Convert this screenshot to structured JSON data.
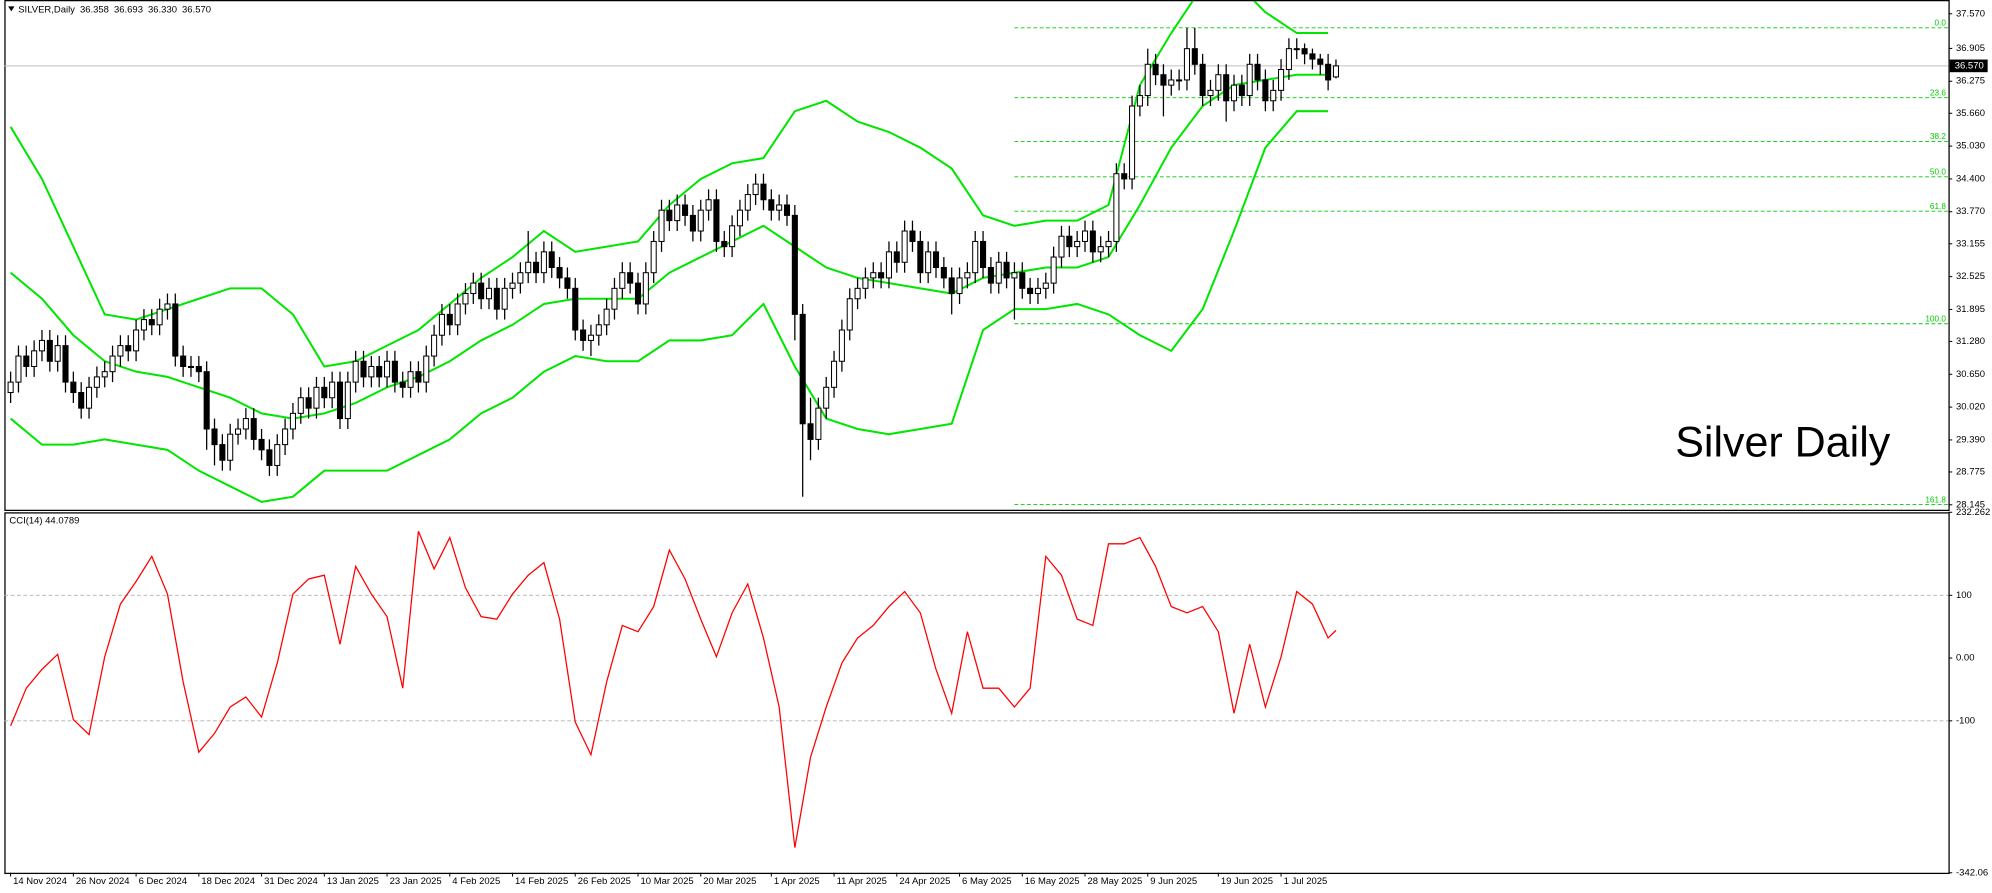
{
  "chart_data": [
    {
      "type": "candlestick",
      "title": "SILVER,Daily",
      "header_values": [
        "36.358",
        "36.693",
        "36.330",
        "36.570"
      ],
      "annotation": "Silver Daily",
      "up_color": "#ffffff",
      "down_color": "#000000",
      "outline_color": "#000000",
      "open": [
        30.3,
        30.5,
        31.0,
        30.8,
        31.1,
        31.3,
        30.9,
        31.2,
        30.5,
        30.3,
        30.0,
        30.4,
        30.6,
        30.7,
        31.0,
        31.2,
        31.1,
        31.5,
        31.7,
        31.6,
        31.9,
        32.0,
        31.0,
        30.8,
        30.8,
        30.7,
        29.6,
        29.3,
        29.0,
        29.5,
        29.6,
        29.8,
        29.4,
        29.2,
        28.9,
        29.3,
        29.6,
        29.9,
        30.2,
        30.0,
        30.4,
        30.2,
        30.5,
        29.8,
        30.5,
        30.9,
        30.6,
        30.8,
        30.6,
        30.9,
        30.5,
        30.4,
        30.7,
        30.5,
        31.0,
        31.4,
        31.8,
        31.6,
        32.0,
        32.2,
        32.4,
        32.1,
        32.3,
        31.9,
        32.3,
        32.4,
        32.6,
        32.8,
        32.6,
        33.0,
        32.7,
        32.5,
        32.3,
        31.5,
        31.3,
        31.4,
        31.6,
        31.9,
        32.3,
        32.6,
        32.4,
        32.0,
        32.6,
        33.2,
        33.8,
        33.6,
        33.9,
        33.7,
        33.4,
        33.8,
        34.0,
        33.2,
        33.1,
        33.5,
        33.8,
        34.1,
        34.3,
        34.0,
        33.8,
        33.9,
        33.7,
        31.8,
        29.7,
        29.4,
        30.0,
        30.4,
        30.9,
        31.5,
        32.1,
        32.3,
        32.5,
        32.6,
        32.5,
        33.0,
        32.8,
        33.4,
        33.2,
        32.6,
        33.0,
        32.7,
        32.5,
        32.2,
        32.5,
        32.6,
        33.2,
        32.7,
        32.4,
        32.8,
        32.5,
        32.6,
        32.3,
        32.2,
        32.3,
        32.4,
        32.9,
        33.3,
        33.1,
        33.2,
        33.4,
        33.0,
        33.1,
        33.2,
        34.5,
        34.4,
        35.8,
        36.0,
        36.6,
        36.4,
        36.2,
        36.3,
        36.3,
        36.9,
        36.6,
        36.0,
        36.1,
        36.4,
        35.9,
        36.2,
        36.0,
        36.6,
        36.3,
        35.9,
        36.1,
        36.5,
        36.9,
        36.9,
        36.8,
        36.7,
        36.6,
        36.358
      ],
      "high": [
        30.7,
        31.2,
        31.2,
        31.3,
        31.5,
        31.5,
        31.4,
        31.4,
        30.7,
        30.5,
        30.6,
        30.8,
        30.9,
        31.2,
        31.4,
        31.4,
        31.7,
        31.9,
        31.9,
        32.1,
        32.2,
        32.2,
        31.2,
        31.0,
        31.0,
        30.9,
        29.8,
        29.5,
        29.7,
        29.8,
        30.0,
        30.0,
        29.6,
        29.4,
        29.5,
        29.8,
        30.1,
        30.4,
        30.4,
        30.6,
        30.6,
        30.7,
        30.7,
        30.7,
        31.1,
        31.1,
        31.0,
        31.0,
        31.1,
        31.1,
        30.7,
        30.9,
        30.9,
        31.2,
        31.6,
        32.0,
        32.0,
        32.2,
        32.4,
        32.6,
        32.6,
        32.5,
        32.5,
        32.5,
        32.6,
        32.8,
        33.4,
        33.0,
        33.2,
        33.2,
        32.9,
        32.7,
        32.5,
        31.7,
        31.6,
        31.8,
        32.1,
        32.5,
        32.8,
        32.8,
        32.6,
        32.8,
        33.4,
        34.0,
        34.0,
        34.1,
        34.1,
        33.9,
        34.0,
        34.2,
        34.2,
        33.4,
        33.7,
        34.0,
        34.3,
        34.5,
        34.5,
        34.2,
        34.1,
        34.1,
        33.9,
        32.0,
        30.2,
        30.2,
        30.6,
        31.1,
        31.7,
        32.3,
        32.5,
        32.7,
        32.8,
        32.8,
        33.2,
        33.2,
        33.6,
        33.6,
        33.4,
        33.2,
        33.2,
        32.9,
        32.7,
        32.7,
        32.8,
        33.4,
        33.4,
        32.9,
        33.0,
        33.0,
        32.8,
        32.8,
        32.5,
        32.5,
        32.6,
        33.1,
        33.5,
        33.5,
        33.4,
        33.6,
        33.6,
        33.3,
        33.4,
        34.7,
        34.7,
        36.0,
        36.2,
        36.9,
        36.8,
        36.6,
        36.5,
        36.5,
        37.3,
        37.3,
        36.8,
        36.3,
        36.6,
        36.6,
        36.4,
        36.4,
        36.8,
        36.8,
        36.5,
        36.3,
        36.7,
        37.1,
        37.1,
        37.0,
        36.9,
        36.8,
        36.8,
        36.693
      ],
      "low": [
        30.1,
        30.3,
        30.6,
        30.6,
        30.9,
        30.7,
        30.7,
        30.3,
        30.1,
        29.8,
        29.8,
        30.2,
        30.4,
        30.5,
        30.8,
        30.9,
        30.9,
        31.3,
        31.4,
        31.4,
        31.7,
        30.8,
        30.6,
        30.6,
        30.5,
        29.2,
        28.9,
        28.8,
        28.8,
        29.3,
        29.4,
        29.2,
        29.0,
        28.7,
        28.7,
        29.1,
        29.4,
        29.7,
        29.8,
        29.8,
        30.0,
        30.0,
        29.6,
        29.6,
        30.3,
        30.4,
        30.4,
        30.4,
        30.4,
        30.3,
        30.2,
        30.2,
        30.3,
        30.3,
        30.8,
        31.2,
        31.4,
        31.4,
        31.8,
        32.0,
        31.9,
        31.9,
        31.7,
        31.7,
        32.1,
        32.2,
        32.4,
        32.4,
        32.4,
        32.5,
        32.3,
        32.1,
        31.3,
        31.1,
        31.0,
        31.2,
        31.4,
        31.7,
        32.1,
        32.2,
        31.8,
        31.8,
        32.4,
        33.0,
        33.4,
        33.4,
        33.5,
        33.2,
        33.2,
        33.6,
        33.0,
        32.9,
        32.9,
        33.3,
        33.6,
        33.9,
        33.8,
        33.6,
        33.6,
        33.5,
        31.3,
        28.3,
        29.0,
        29.2,
        29.8,
        30.2,
        30.7,
        31.3,
        31.9,
        32.1,
        32.3,
        32.3,
        32.3,
        32.6,
        32.6,
        33.0,
        32.4,
        32.4,
        32.5,
        32.3,
        31.8,
        32.0,
        32.3,
        32.4,
        32.5,
        32.2,
        32.2,
        32.3,
        31.7,
        32.1,
        32.0,
        32.0,
        32.1,
        32.2,
        32.7,
        32.9,
        32.9,
        33.0,
        32.8,
        32.8,
        32.9,
        33.0,
        34.2,
        34.2,
        35.6,
        35.8,
        36.2,
        35.6,
        36.0,
        36.1,
        36.1,
        36.4,
        35.8,
        35.8,
        35.9,
        35.5,
        35.7,
        35.8,
        35.8,
        36.1,
        35.7,
        35.7,
        35.9,
        36.3,
        36.7,
        36.6,
        36.5,
        36.4,
        36.1,
        36.33
      ],
      "close": [
        30.5,
        31.0,
        30.8,
        31.1,
        31.3,
        30.9,
        31.2,
        30.5,
        30.3,
        30.0,
        30.4,
        30.6,
        30.7,
        31.0,
        31.2,
        31.1,
        31.5,
        31.7,
        31.6,
        31.9,
        32.0,
        31.0,
        30.8,
        30.8,
        30.7,
        29.6,
        29.3,
        29.0,
        29.5,
        29.6,
        29.8,
        29.4,
        29.2,
        28.9,
        29.3,
        29.6,
        29.9,
        30.2,
        30.0,
        30.4,
        30.2,
        30.5,
        29.8,
        30.5,
        30.9,
        30.6,
        30.8,
        30.6,
        30.9,
        30.5,
        30.4,
        30.7,
        30.5,
        31.0,
        31.4,
        31.8,
        31.6,
        32.0,
        32.2,
        32.4,
        32.1,
        32.3,
        31.9,
        32.3,
        32.4,
        32.6,
        32.8,
        32.6,
        33.0,
        32.7,
        32.5,
        32.3,
        31.5,
        31.3,
        31.4,
        31.6,
        31.9,
        32.3,
        32.6,
        32.4,
        32.0,
        32.6,
        33.2,
        33.8,
        33.6,
        33.9,
        33.7,
        33.4,
        33.8,
        34.0,
        33.2,
        33.1,
        33.5,
        33.8,
        34.1,
        34.3,
        34.0,
        33.8,
        33.9,
        33.7,
        31.8,
        29.7,
        29.4,
        30.0,
        30.4,
        30.9,
        31.5,
        32.1,
        32.3,
        32.5,
        32.6,
        32.5,
        33.0,
        32.8,
        33.4,
        33.2,
        32.6,
        33.0,
        32.7,
        32.5,
        32.2,
        32.5,
        32.6,
        33.2,
        32.7,
        32.4,
        32.8,
        32.5,
        32.6,
        32.3,
        32.2,
        32.3,
        32.4,
        32.9,
        33.3,
        33.1,
        33.2,
        33.4,
        33.0,
        33.1,
        33.2,
        34.5,
        34.4,
        35.8,
        36.0,
        36.6,
        36.4,
        36.2,
        36.3,
        36.3,
        36.9,
        36.6,
        36.0,
        36.1,
        36.4,
        35.9,
        36.2,
        36.0,
        36.6,
        36.3,
        35.9,
        36.1,
        36.5,
        36.9,
        36.9,
        36.8,
        36.7,
        36.6,
        36.3,
        36.57
      ],
      "bands": {
        "color": "#00e600",
        "x": [
          0,
          4,
          8,
          12,
          16,
          20,
          24,
          28,
          32,
          36,
          40,
          44,
          48,
          52,
          56,
          60,
          64,
          68,
          72,
          76,
          80,
          84,
          88,
          92,
          96,
          100,
          104,
          108,
          112,
          116,
          120,
          124,
          128,
          132,
          136,
          140,
          144,
          148,
          152,
          156,
          160,
          164,
          168
        ],
        "upper": [
          35.4,
          34.4,
          33.1,
          31.8,
          31.7,
          31.9,
          32.1,
          32.3,
          32.3,
          31.8,
          30.8,
          30.9,
          31.2,
          31.5,
          32.0,
          32.5,
          32.9,
          33.4,
          33.0,
          33.1,
          33.2,
          33.9,
          34.4,
          34.7,
          34.8,
          35.7,
          35.9,
          35.5,
          35.3,
          35.0,
          34.6,
          33.7,
          33.5,
          33.6,
          33.6,
          33.9,
          36.2,
          37.2,
          38.1,
          38.2,
          37.6,
          37.2,
          37.2
        ],
        "middle": [
          32.6,
          32.1,
          31.4,
          30.9,
          30.7,
          30.6,
          30.4,
          30.2,
          29.9,
          29.8,
          29.9,
          30.1,
          30.4,
          30.6,
          30.9,
          31.3,
          31.6,
          32.0,
          32.1,
          32.1,
          32.1,
          32.6,
          32.9,
          33.2,
          33.5,
          33.1,
          32.7,
          32.5,
          32.4,
          32.3,
          32.2,
          32.5,
          32.6,
          32.7,
          32.7,
          32.9,
          33.9,
          35.0,
          35.8,
          36.2,
          36.3,
          36.4,
          36.4
        ],
        "lower": [
          29.8,
          29.3,
          29.3,
          29.4,
          29.3,
          29.2,
          28.8,
          28.5,
          28.2,
          28.3,
          28.8,
          28.8,
          28.8,
          29.1,
          29.4,
          29.9,
          30.2,
          30.7,
          31.0,
          30.9,
          30.9,
          31.3,
          31.3,
          31.4,
          32.0,
          30.8,
          29.8,
          29.6,
          29.5,
          29.6,
          29.7,
          31.5,
          31.9,
          31.9,
          32.0,
          31.8,
          31.4,
          31.1,
          31.9,
          33.4,
          35.0,
          35.7,
          35.7
        ]
      },
      "fib_x": 128,
      "fib_color": "#00cc00",
      "fib_levels": [
        {
          "value": 37.3,
          "label": "0.0"
        },
        {
          "value": 35.96,
          "label": "23.6"
        },
        {
          "value": 35.12,
          "label": "38.2"
        },
        {
          "value": 34.44,
          "label": "50.0"
        },
        {
          "value": 33.78,
          "label": "61.8"
        },
        {
          "value": 31.62,
          "label": "100.0"
        },
        {
          "value": 28.15,
          "label": "161.8"
        }
      ],
      "last_price": {
        "value": 36.57,
        "label": "36.570"
      },
      "xlim": [
        -0.8,
        247.1
      ],
      "xticks": [
        {
          "value": 0,
          "label": "14 Nov 2024"
        },
        {
          "value": 8,
          "label": "26 Nov 2024"
        },
        {
          "value": 16,
          "label": "6 Dec 2024"
        },
        {
          "value": 24,
          "label": "18 Dec 2024"
        },
        {
          "value": 32,
          "label": "31 Dec 2024"
        },
        {
          "value": 40,
          "label": "13 Jan 2025"
        },
        {
          "value": 48,
          "label": "23 Jan 2025"
        },
        {
          "value": 56,
          "label": "4 Feb 2025"
        },
        {
          "value": 64,
          "label": "14 Feb 2025"
        },
        {
          "value": 72,
          "label": "26 Feb 2025"
        },
        {
          "value": 80,
          "label": "10 Mar 2025"
        },
        {
          "value": 88,
          "label": "20 Mar 2025"
        },
        {
          "value": 97,
          "label": "1 Apr 2025"
        },
        {
          "value": 105,
          "label": "11 Apr 2025"
        },
        {
          "value": 113,
          "label": "24 Apr 2025"
        },
        {
          "value": 121,
          "label": "6 May 2025"
        },
        {
          "value": 129,
          "label": "16 May 2025"
        },
        {
          "value": 137,
          "label": "28 May 2025"
        },
        {
          "value": 145,
          "label": "9 Jun 2025"
        },
        {
          "value": 154,
          "label": "19 Jun 2025"
        },
        {
          "value": 162,
          "label": "1 Jul 2025"
        }
      ],
      "ylim": [
        28.05,
        37.81
      ],
      "yticks": [
        {
          "value": 37.57,
          "label": "37.570"
        },
        36.905,
        36.275,
        {
          "value": 35.66,
          "label": "35.660"
        },
        {
          "value": 35.03,
          "label": "35.030"
        },
        {
          "value": 34.4,
          "label": "34.400"
        },
        {
          "value": 33.77,
          "label": "33.770"
        },
        33.155,
        32.525,
        31.895,
        {
          "value": 31.28,
          "label": "31.280"
        },
        {
          "value": 30.65,
          "label": "30.650"
        },
        {
          "value": 30.02,
          "label": "30.020"
        },
        {
          "value": 29.39,
          "label": "29.390"
        },
        28.775,
        28.145
      ]
    },
    {
      "type": "line",
      "title": "CCI(14) 44.0789",
      "color": "#ff0000",
      "x": [
        0,
        2,
        4,
        6,
        8,
        10,
        12,
        14,
        16,
        18,
        20,
        22,
        24,
        26,
        28,
        30,
        32,
        34,
        36,
        38,
        40,
        42,
        44,
        46,
        48,
        50,
        52,
        54,
        56,
        58,
        60,
        62,
        64,
        66,
        68,
        70,
        72,
        74,
        76,
        78,
        80,
        82,
        84,
        86,
        88,
        90,
        92,
        94,
        96,
        98,
        100,
        102,
        104,
        106,
        108,
        110,
        112,
        114,
        116,
        118,
        120,
        122,
        124,
        126,
        128,
        130,
        132,
        134,
        136,
        138,
        140,
        142,
        144,
        146,
        148,
        150,
        152,
        154,
        156,
        158,
        160,
        162,
        164,
        166,
        168,
        169
      ],
      "values": [
        -108,
        -48,
        -18,
        6,
        -98,
        -122,
        2,
        86,
        122,
        162,
        102,
        -38,
        -150,
        -120,
        -78,
        -62,
        -94,
        -8,
        102,
        126,
        132,
        22,
        146,
        102,
        66,
        -48,
        202,
        142,
        192,
        112,
        66,
        62,
        102,
        132,
        152,
        62,
        -102,
        -154,
        -38,
        52,
        42,
        82,
        172,
        126,
        62,
        2,
        72,
        118,
        32,
        -78,
        -302,
        -158,
        -78,
        -8,
        32,
        52,
        82,
        106,
        72,
        -18,
        -88,
        42,
        -48,
        -48,
        -78,
        -48,
        162,
        132,
        62,
        52,
        182,
        182,
        192,
        146,
        82,
        72,
        82,
        42,
        -88,
        22,
        -78,
        2,
        106,
        86,
        32,
        44.0789
      ],
      "levels": [
        100,
        -100
      ],
      "xlim": [
        -0.8,
        247.1
      ],
      "ylim": [
        -342.06,
        232.262
      ],
      "yticks": [
        232.262,
        100,
        {
          "value": 0,
          "label": "0.00"
        },
        -100,
        -342.06
      ]
    }
  ]
}
